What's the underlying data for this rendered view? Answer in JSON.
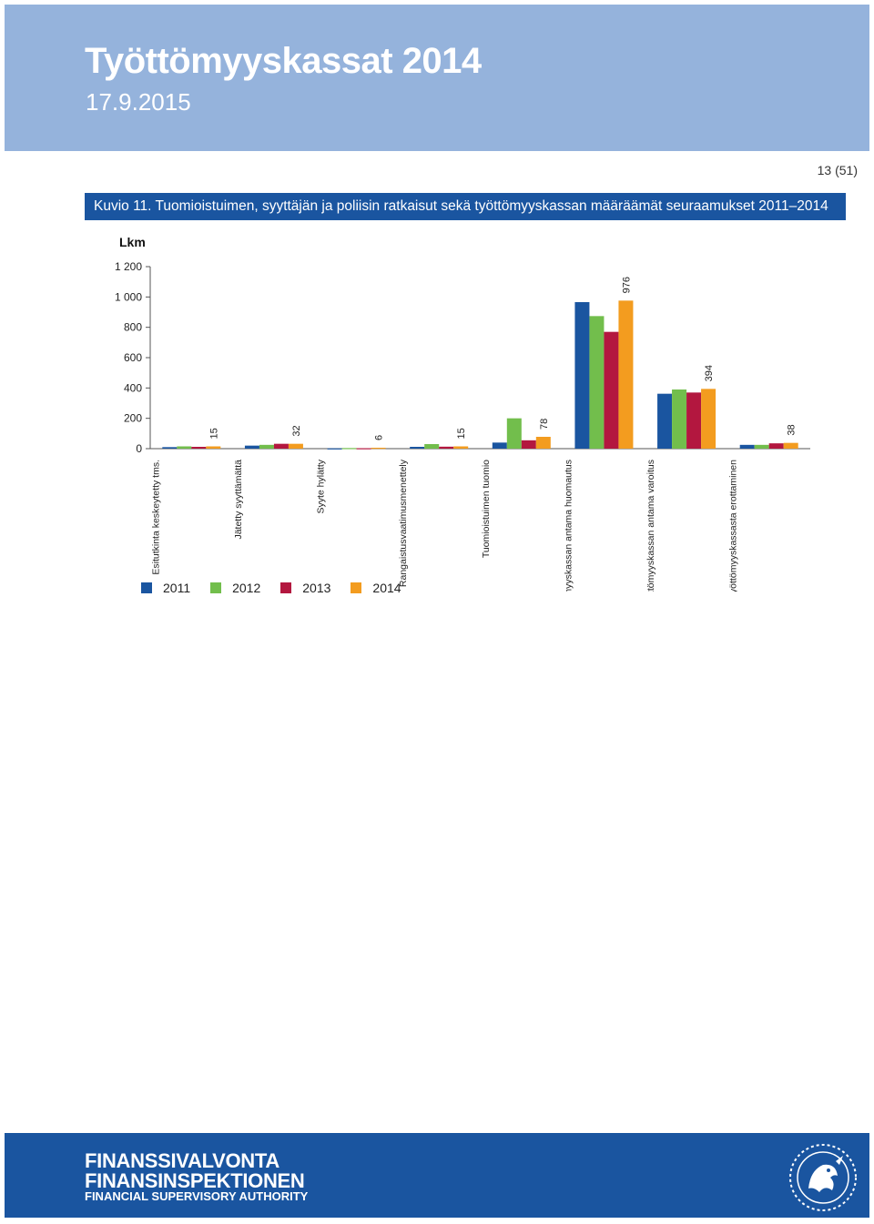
{
  "header": {
    "title": "Työttömyyskassat 2014",
    "date": "17.9.2015"
  },
  "page_number": "13 (51)",
  "figure_caption": "Kuvio 11. Tuomioistuimen, syyttäjän ja poliisin ratkaisut sekä työttömyyskassan määräämät seuraamukset 2011–2014",
  "unit_label": "Lkm",
  "chart_data": {
    "type": "bar",
    "categories": [
      "Esitutkinta keskeytetty tms.",
      "Jätetty syyttämättä",
      "Syyte hylätty",
      "Rangaistusvaatimusmenettely",
      "Tuomioistuimen tuomio",
      "Työttömyyskassan antama huomautus",
      "Työttömyyskassan antama varoitus",
      "Työttömyyskassasta erottaminen"
    ],
    "series": [
      {
        "name": "2011",
        "color": "#1a55a0",
        "values": [
          10,
          20,
          2,
          12,
          40,
          966,
          362,
          25
        ]
      },
      {
        "name": "2012",
        "color": "#72be4c",
        "values": [
          15,
          25,
          4,
          30,
          200,
          874,
          390,
          25
        ]
      },
      {
        "name": "2013",
        "color": "#b3173f",
        "values": [
          12,
          32,
          3,
          13,
          55,
          770,
          370,
          35
        ]
      },
      {
        "name": "2014",
        "color": "#f39c1f",
        "values": [
          15,
          32,
          6,
          15,
          78,
          976,
          394,
          38
        ]
      }
    ],
    "data_labels": [
      "15",
      "32",
      "6",
      "15",
      "78",
      "976",
      "394",
      "38"
    ],
    "ylim": [
      0,
      1200
    ],
    "yticks": [
      0,
      200,
      400,
      600,
      800,
      1000,
      1200
    ],
    "ytick_labels": [
      "0",
      "200",
      "400",
      "600",
      "800",
      "1 000",
      "1 200"
    ],
    "legend": "bottom-left",
    "grid": false
  },
  "footer": {
    "line1": "FINANSSIVALVONTA",
    "line2": "FINANSINSPEKTIONEN",
    "line3": "FINANCIAL SUPERVISORY AUTHORITY",
    "emblem_icon": "lion-emblem-icon"
  }
}
